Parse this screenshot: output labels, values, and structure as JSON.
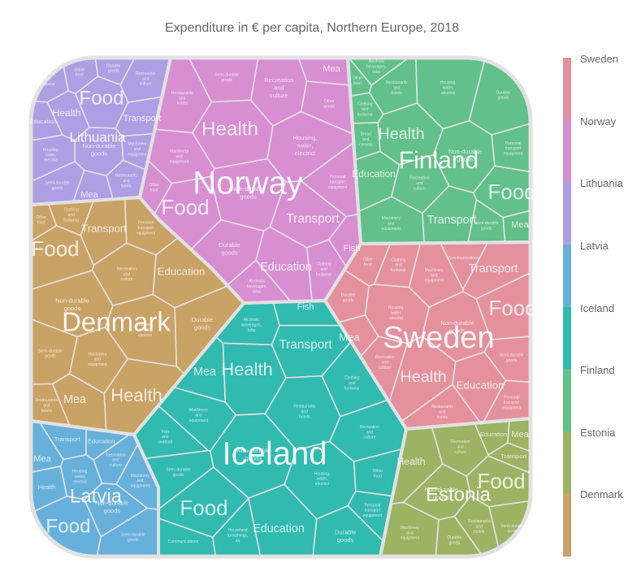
{
  "chart_title": "Expenditure in € per capita, Northern Europe, 2018",
  "colors": {
    "Sweden": "#e5919d",
    "Norway": "#d78fd1",
    "Lithuania": "#ac9fe3",
    "Latvia": "#67b0db",
    "Iceland": "#31bab0",
    "Finland": "#62c08a",
    "Estonia": "#9bb362",
    "Denmark": "#c9a265",
    "border": "#e2e2e2"
  },
  "legend": [
    "Sweden",
    "Norway",
    "Lithuania",
    "Latvia",
    "Iceland",
    "Finland",
    "Estonia",
    "Denmark"
  ],
  "chart_data": {
    "type": "voronoi-treemap",
    "title": "Expenditure in € per capita, Northern Europe, 2018",
    "groups": [
      {
        "name": "Norway",
        "labels": [
          "Health",
          "Food",
          "Non-durable goods",
          "Transport",
          "Durable goods",
          "Education",
          "Recreation and culture",
          "Housing, water, electrici",
          "Restaurants and hotels",
          "Semi-durable goods",
          "Machinery and equipment",
          "Clothing and footwear",
          "Other food",
          "Mea",
          "Fish",
          "Alcoholic beverages, toba",
          "Personal transport equipment",
          "Other goods"
        ]
      },
      {
        "name": "Finland",
        "labels": [
          "Health",
          "Food",
          "Non-durable goods",
          "Transport",
          "Education",
          "Recreation and culture",
          "Housing, water, electrici",
          "Durable goods",
          "Other food",
          "Clothing and footwear",
          "Machinery and equipment",
          "Semi-durable goods",
          "Mea",
          "Alcoholic beverages, toba",
          "Restaurants and hotels",
          "Personal transport equipment",
          "Bread and cereals"
        ]
      },
      {
        "name": "Lithuania",
        "labels": [
          "Food",
          "Health",
          "Non-durable goods",
          "Transport",
          "Durable goods",
          "Education",
          "Mea",
          "Recreation and culture",
          "Housing, water, electrici",
          "Semi-durable goods",
          "Restaurants and hotels",
          "Machinery and equipment",
          "Other food",
          "Clothing and footwear"
        ]
      },
      {
        "name": "Denmark",
        "labels": [
          "Food",
          "Non-durable goods",
          "Transport",
          "Education",
          "Recreation and culture",
          "Housing, water, electrici",
          "Durable goods",
          "Semi-durable goods",
          "Machinery and equipment",
          "Health",
          "Mea",
          "Restaurants and hotels",
          "Other food",
          "Clothing and footwear",
          "Personal transport equipment"
        ]
      },
      {
        "name": "Sweden",
        "labels": [
          "Food",
          "Non-durable goods",
          "Transport",
          "Health",
          "Education",
          "Housing, water, electrici",
          "Recreation and culture",
          "Machinery and equipment",
          "Restaurants and hotels",
          "Semi-durable goods",
          "Mea",
          "Durable goods",
          "Other food",
          "Clothing and footwear",
          "Communications",
          "Personal transport equipment"
        ]
      },
      {
        "name": "Iceland",
        "labels": [
          "Food",
          "Health",
          "Transport",
          "Non-durable goods",
          "Education",
          "Housing, water, electrici",
          "Durable goods",
          "Restaurants and hotels",
          "Machinery and equipment",
          "Semi-durable goods",
          "Recreation and culture",
          "Mea",
          "Fish",
          "Clothing and footwear",
          "Alcoholic beverages, toba",
          "Communications",
          "Household furnishings, eq",
          "Other food",
          "Fish and seafood",
          "Personal transport equipment"
        ]
      },
      {
        "name": "Latvia",
        "labels": [
          "Food",
          "Non-durable goods",
          "Transport",
          "Education",
          "Health",
          "Mea",
          "Housing, water, electrici",
          "Recreation and culture",
          "Machinery and equipment",
          "Semi-durable goods"
        ]
      },
      {
        "name": "Estonia",
        "labels": [
          "Food",
          "Non-durable goods",
          "Health",
          "Education",
          "Transport",
          "Mea",
          "Machinery and equipment",
          "Recreation and culture",
          "Semi-durable goods",
          "Durable goods",
          "Restaurants and hotels"
        ]
      }
    ],
    "legend_position": "right",
    "grid": false
  }
}
